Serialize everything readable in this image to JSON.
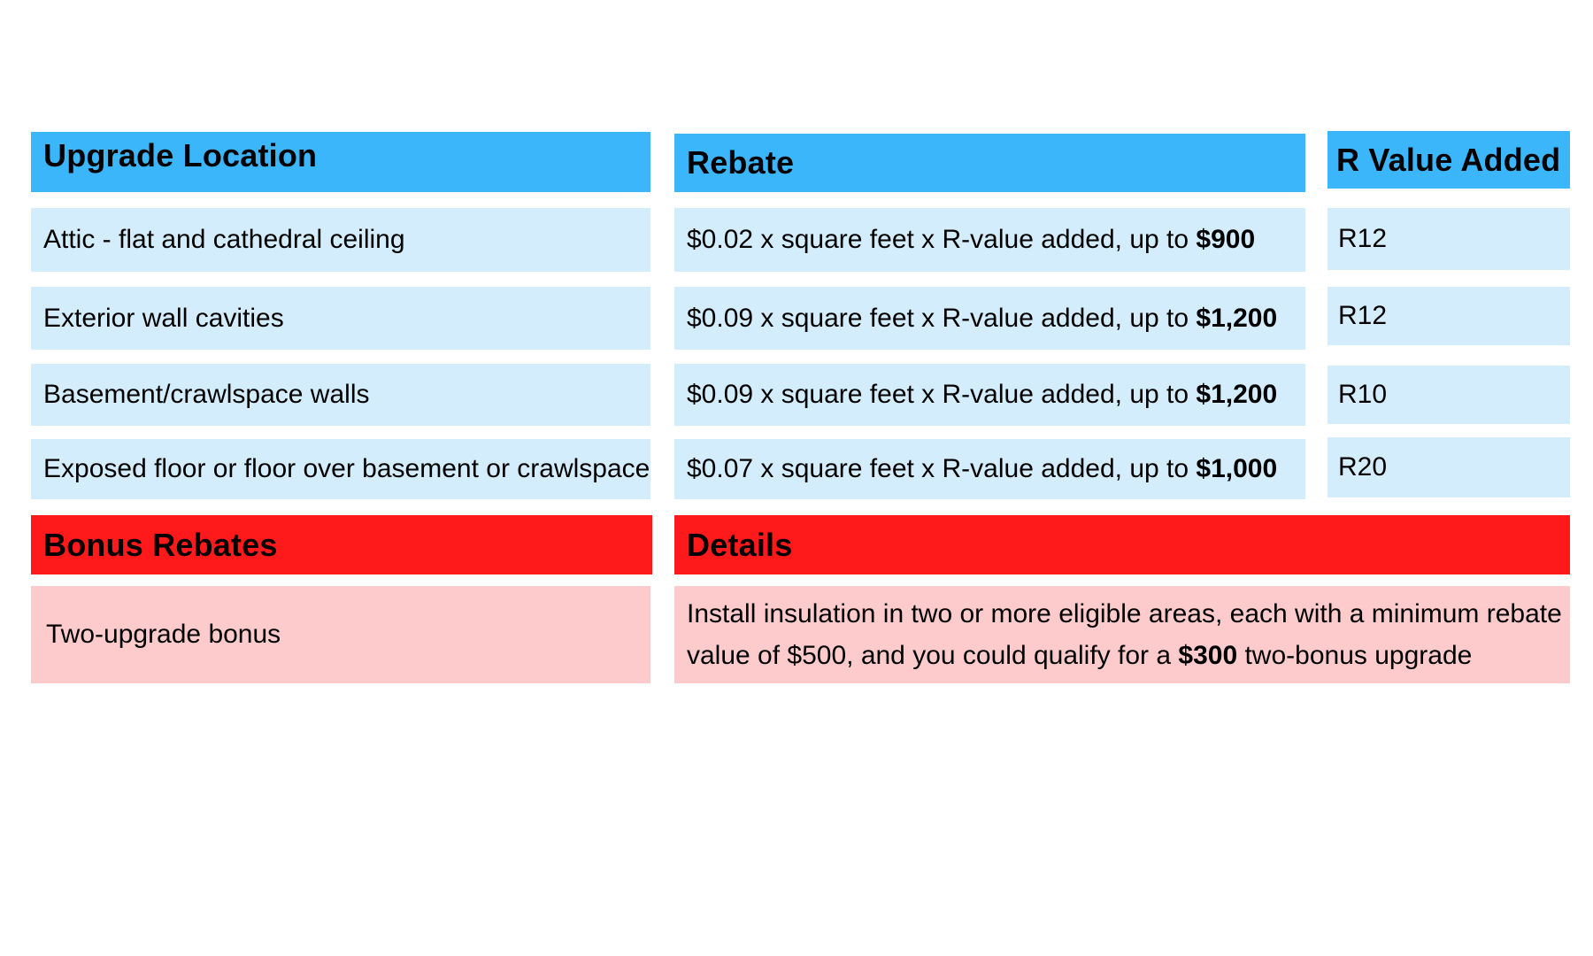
{
  "table": {
    "headers": {
      "location": "Upgrade Location",
      "rebate": "Rebate",
      "r_value": "R Value Added"
    },
    "rows": [
      {
        "location": "Attic - flat and cathedral ceiling",
        "rebate_prefix": "$0.02 x square feet x R-value added, up to ",
        "rebate_max": "$900",
        "r_value": "R12"
      },
      {
        "location": "Exterior wall cavities",
        "rebate_prefix": "$0.09 x square feet x R-value added, up to ",
        "rebate_max": "$1,200",
        "r_value": "R12"
      },
      {
        "location": "Basement/crawlspace walls",
        "rebate_prefix": "$0.09 x square feet x R-value added, up to ",
        "rebate_max": "$1,200",
        "r_value": "R10"
      },
      {
        "location": "Exposed floor or floor over basement or crawlspace",
        "rebate_prefix": "$0.07 x square feet x R-value added, up to ",
        "rebate_max": "$1,000",
        "r_value": "R20"
      }
    ]
  },
  "bonus": {
    "headers": {
      "bonus": "Bonus Rebates",
      "details": "Details"
    },
    "name": "Two-upgrade bonus",
    "details_prefix": "Install insulation in two or more eligible areas, each with a minimum rebate value of $500, and you could qualify for a ",
    "details_amount": "$300",
    "details_suffix": " two-bonus upgrade"
  },
  "colors": {
    "header_blue": "#3bb6fb",
    "cell_blue": "#d3edfc",
    "header_red": "#fe1a1a",
    "cell_pink": "#fdcbcc"
  }
}
